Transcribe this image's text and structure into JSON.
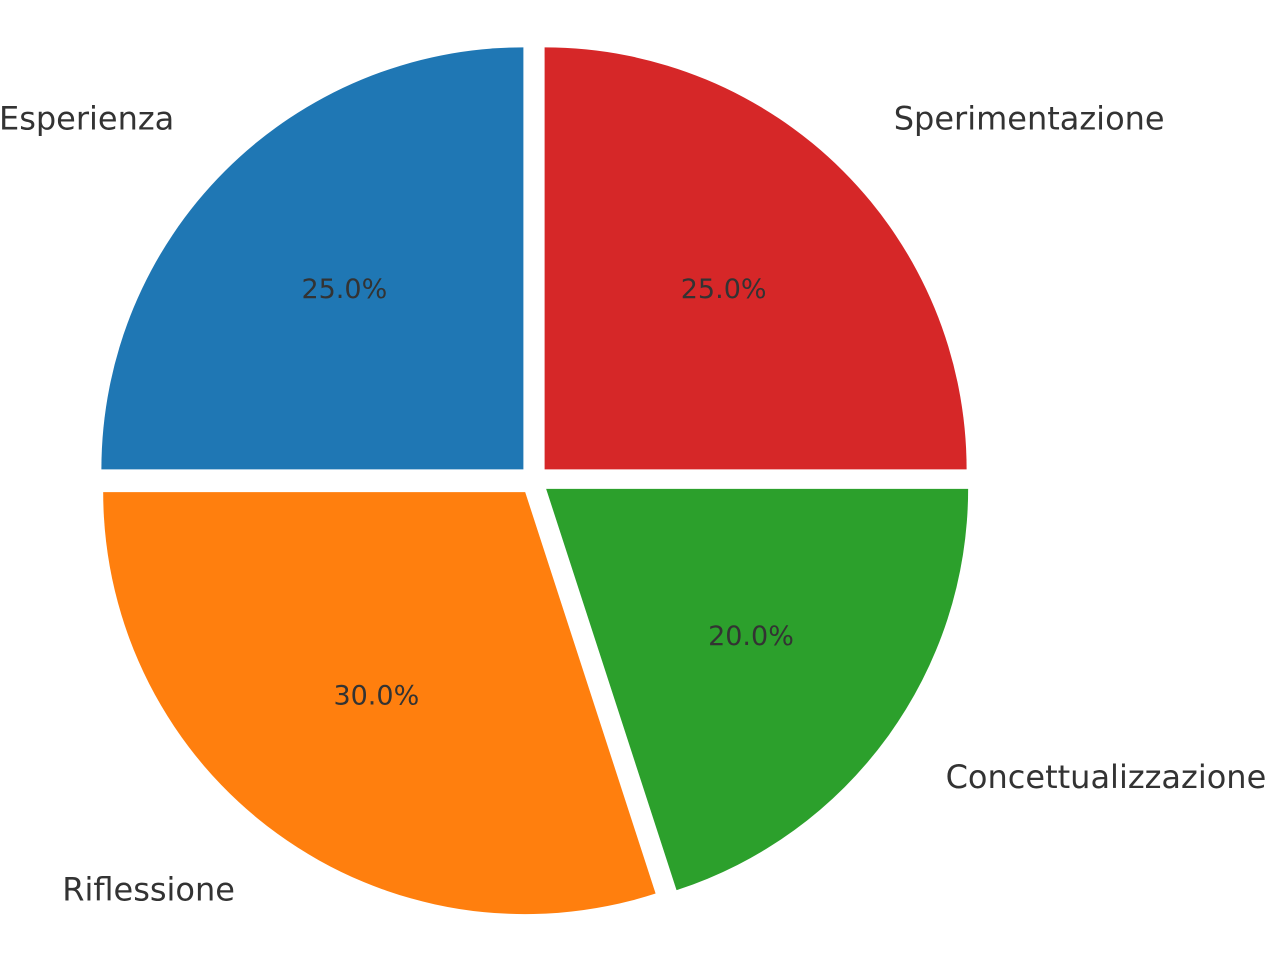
{
  "chart_data": {
    "type": "pie",
    "title": "",
    "start_angle_deg": 90,
    "direction": "counterclockwise",
    "exploded": true,
    "slices": [
      {
        "label": "Esperienza",
        "value": 25.0,
        "pct_label": "25.0%",
        "color": "#1f77b4"
      },
      {
        "label": "Riflessione",
        "value": 30.0,
        "pct_label": "30.0%",
        "color": "#ff7f0e"
      },
      {
        "label": "Concettualizzazione",
        "value": 20.0,
        "pct_label": "20.0%",
        "color": "#2ca02c"
      },
      {
        "label": "Sperimentazione",
        "value": 25.0,
        "pct_label": "25.0%",
        "color": "#d62728"
      }
    ]
  }
}
